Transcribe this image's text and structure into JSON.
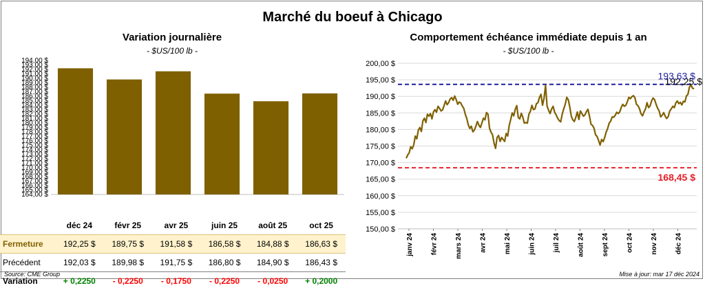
{
  "header": {
    "title": "Marché du boeuf à Chicago"
  },
  "left_panel": {
    "title": "Variation  journalière",
    "unit": "- $US/100 lb -"
  },
  "right_panel": {
    "title": "Comportement  échéance immédiate depuis 1 an",
    "unit": "- $US/100 lb -"
  },
  "colors": {
    "bar": "#7f6000",
    "line": "#7f6000",
    "max_line": "#1f1fa0",
    "min_line": "#e8202a",
    "closing_row_bg": "#fff2cc"
  },
  "chart_data": [
    {
      "type": "bar",
      "title": "Variation  journalière",
      "categories": [
        "déc 24",
        "févr 25",
        "avr 25",
        "juin 25",
        "août 25",
        "oct 25"
      ],
      "values": [
        192.25,
        189.75,
        191.58,
        186.58,
        184.88,
        186.63
      ],
      "ylim": [
        164,
        194
      ],
      "ytick_step": 1,
      "y_ticks": [
        "164,00 $",
        "165,00 $",
        "166,00 $",
        "167,00 $",
        "168,00 $",
        "169,00 $",
        "170,00 $",
        "171,00 $",
        "172,00 $",
        "173,00 $",
        "174,00 $",
        "175,00 $",
        "176,00 $",
        "177,00 $",
        "178,00 $",
        "179,00 $",
        "180,00 $",
        "181,00 $",
        "182,00 $",
        "183,00 $",
        "184,00 $",
        "185,00 $",
        "186,00 $",
        "187,00 $",
        "188,00 $",
        "189,00 $",
        "190,00 $",
        "191,00 $",
        "192,00 $",
        "193,00 $",
        "194,00 $"
      ]
    },
    {
      "type": "line",
      "title": "Comportement  échéance immédiate depuis 1 an",
      "ylim": [
        150,
        200
      ],
      "ytick_step": 5,
      "y_ticks": [
        "150,00 $",
        "155,00 $",
        "160,00 $",
        "165,00 $",
        "170,00 $",
        "175,00 $",
        "180,00 $",
        "185,00 $",
        "190,00 $",
        "195,00 $",
        "200,00 $"
      ],
      "x_labels": [
        "janv 24",
        "févr 24",
        "mars 24",
        "avr 24",
        "mai 24",
        "juin 24",
        "juil 24",
        "août 24",
        "sept 24",
        "oct 24",
        "nov 24",
        "déc 24"
      ],
      "max_line": {
        "value": 193.63,
        "label": "193,63 $"
      },
      "min_line": {
        "value": 168.45,
        "label": "168,45 $"
      },
      "last_label": "192,25 $",
      "grid": true,
      "series": [
        {
          "values": [
            171.3,
            172.3,
            173.0,
            174.8,
            174.2,
            175.4,
            178.0,
            177.2,
            179.8,
            180.6,
            179.4,
            182.6,
            183.4,
            182.1,
            184.6,
            184.0,
            184.8,
            183.2,
            185.3,
            186.0,
            185.2,
            187.0,
            186.4,
            185.6,
            185.9,
            187.2,
            188.6,
            187.5,
            188.1,
            189.2,
            189.6,
            188.8,
            190.1,
            189.0,
            187.6,
            188.3,
            188.0,
            187.1,
            186.4,
            184.6,
            183.3,
            181.4,
            180.3,
            181.0,
            179.3,
            179.8,
            181.0,
            182.4,
            181.3,
            180.6,
            182.0,
            183.4,
            182.9,
            185.1,
            184.6,
            180.4,
            179.2,
            178.4,
            175.9,
            174.3,
            177.6,
            178.2,
            176.4,
            177.6,
            177.0,
            176.4,
            178.8,
            178.0,
            181.2,
            183.0,
            185.0,
            184.1,
            186.1,
            187.2,
            183.6,
            183.2,
            184.9,
            183.7,
            181.9,
            182.1,
            181.9,
            184.6,
            185.5,
            187.3,
            186.0,
            186.2,
            187.8,
            188.1,
            189.7,
            190.6,
            187.3,
            189.4,
            193.3,
            187.1,
            185.8,
            184.8,
            186.2,
            187.0,
            185.2,
            184.4,
            183.4,
            182.7,
            182.3,
            184.6,
            186.2,
            187.6,
            189.7,
            189.0,
            186.8,
            184.0,
            182.9,
            182.4,
            183.7,
            185.3,
            183.0,
            185.6,
            184.8,
            184.0,
            184.4,
            185.4,
            186.1,
            184.0,
            181.6,
            181.2,
            180.4,
            178.4,
            177.9,
            176.7,
            175.3,
            177.0,
            176.3,
            177.5,
            179.2,
            180.3,
            181.9,
            182.5,
            183.8,
            183.7,
            184.3,
            185.2,
            184.8,
            185.3,
            186.7,
            187.6,
            187.0,
            187.3,
            188.4,
            189.7,
            189.3,
            189.9,
            190.2,
            189.6,
            187.6,
            187.2,
            186.3,
            184.8,
            184.1,
            185.3,
            186.2,
            188.1,
            186.6,
            187.1,
            188.6,
            189.5,
            189.0,
            187.6,
            186.4,
            185.6,
            183.8,
            184.3,
            185.1,
            184.0,
            183.3,
            183.9,
            185.6,
            186.2,
            187.0,
            186.6,
            188.0,
            188.6,
            187.8,
            188.2,
            187.4,
            188.5,
            188.3,
            190.1,
            190.6,
            192.8,
            193.4,
            192.5,
            192.25
          ]
        }
      ]
    }
  ],
  "table": {
    "rows": [
      {
        "label": "Fermeture",
        "cells": [
          "192,25  $",
          "189,75  $",
          "191,58  $",
          "186,58  $",
          "184,88  $",
          "186,63  $"
        ]
      },
      {
        "label": "Précédent",
        "cells": [
          "192,03  $",
          "189,98  $",
          "191,75  $",
          "186,80  $",
          "184,90  $",
          "186,43  $"
        ]
      },
      {
        "label": "Variation",
        "cells": [
          "+ 0,2250",
          "- 0,2250",
          "- 0,1750",
          "- 0,2250",
          "- 0,0250",
          "+ 0,2000"
        ]
      }
    ]
  },
  "footer": {
    "source": "Source: CME Group",
    "updated": "Mise à jour: mar 17 déc 2024"
  }
}
